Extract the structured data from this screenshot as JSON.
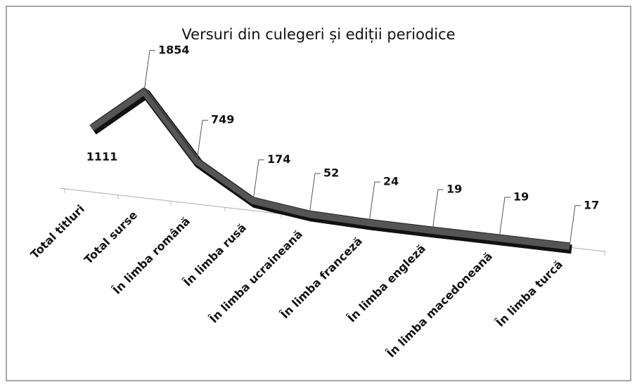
{
  "chart_data": {
    "type": "line3d",
    "title": "Versuri din culegeri și ediții periodice",
    "categories": [
      "Total titluri",
      "Total surse",
      "În limba română",
      "În limba rusă",
      "În limba ucraineană",
      "În limba franceză",
      "În limba engleză",
      "În limba macedoneană",
      "În limba turcă"
    ],
    "values": [
      1111,
      1854,
      749,
      174,
      52,
      24,
      19,
      19,
      17
    ],
    "color": "#555555"
  }
}
